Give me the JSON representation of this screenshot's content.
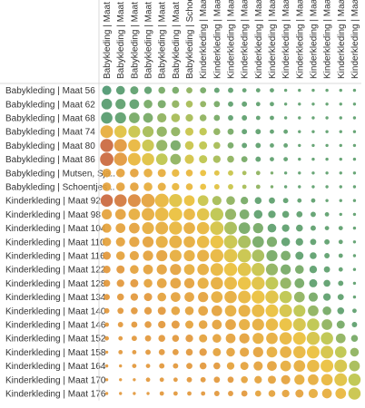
{
  "chart_data": {
    "type": "matrix-bubble",
    "rows": [
      "Babykleding | Maat 56",
      "Babykleding | Maat 62",
      "Babykleding | Maat 68",
      "Babykleding | Maat 74",
      "Babykleding | Maat 80",
      "Babykleding | Maat 86",
      "Babykleding | Mutsen, Sja..",
      "Babykleding | Schoentjes ..",
      "Kinderkleding | Maat 92",
      "Kinderkleding | Maat 98",
      "Kinderkleding | Maat 104",
      "Kinderkleding | Maat 110",
      "Kinderkleding | Maat 116",
      "Kinderkleding | Maat 122",
      "Kinderkleding | Maat 128",
      "Kinderkleding | Maat 134",
      "Kinderkleding | Maat 140",
      "Kinderkleding | Maat 146",
      "Kinderkleding | Maat 152",
      "Kinderkleding | Maat 158",
      "Kinderkleding | Maat 164",
      "Kinderkleding | Maat 170",
      "Kinderkleding | Maat 176"
    ],
    "columns": [
      "Babykleding | Maat 56",
      "Babykleding | Maat 62",
      "Babykleding | Maat 68",
      "Babykleding | Maat 74",
      "Babykleding | Maat 80",
      "Babykleding | Maat 86",
      "Babykleding | Schoentjes ...",
      "Kinderkleding | Maat 92",
      "Kinderkleding | Maat 98",
      "Kinderkleding | Maat 104",
      "Kinderkleding | Maat 110",
      "Kinderkleding | Maat 116",
      "Kinderkleding | Maat 122",
      "Kinderkleding | Maat 128",
      "Kinderkleding | Maat 134",
      "Kinderkleding | Maat 140",
      "Kinderkleding | Maat 146",
      "Kinderkleding | Maat 152",
      "Kinderkleding | Maat 158"
    ],
    "size_values": [
      [
        0.45,
        0.4,
        0.35,
        0.3,
        0.25,
        0.25,
        0.2,
        0.2,
        0.15,
        0.15,
        0.1,
        0.1,
        0.1,
        0.05,
        0.05,
        0.05,
        0.05,
        0.05,
        0.05
      ],
      [
        0.6,
        0.55,
        0.5,
        0.4,
        0.35,
        0.3,
        0.25,
        0.2,
        0.2,
        0.15,
        0.15,
        0.1,
        0.1,
        0.05,
        0.05,
        0.05,
        0.05,
        0.05,
        0.05
      ],
      [
        0.7,
        0.65,
        0.6,
        0.5,
        0.45,
        0.4,
        0.3,
        0.25,
        0.2,
        0.15,
        0.15,
        0.1,
        0.1,
        0.05,
        0.05,
        0.05,
        0.05,
        0.05,
        0.05
      ],
      [
        0.85,
        0.8,
        0.75,
        0.65,
        0.55,
        0.45,
        0.35,
        0.3,
        0.25,
        0.2,
        0.15,
        0.15,
        0.1,
        0.1,
        0.05,
        0.05,
        0.05,
        0.05,
        0.05
      ],
      [
        0.9,
        0.85,
        0.8,
        0.75,
        0.65,
        0.55,
        0.4,
        0.35,
        0.25,
        0.2,
        0.15,
        0.15,
        0.1,
        0.1,
        0.05,
        0.05,
        0.05,
        0.05,
        0.05
      ],
      [
        0.95,
        0.9,
        0.85,
        0.8,
        0.7,
        0.6,
        0.45,
        0.35,
        0.3,
        0.25,
        0.2,
        0.15,
        0.1,
        0.1,
        0.05,
        0.05,
        0.05,
        0.05,
        0.05
      ],
      [
        0.4,
        0.4,
        0.4,
        0.4,
        0.35,
        0.3,
        0.25,
        0.2,
        0.15,
        0.15,
        0.1,
        0.1,
        0.05,
        0.05,
        0.05,
        0.05,
        0.05,
        0.05,
        0.05
      ],
      [
        0.4,
        0.4,
        0.4,
        0.4,
        0.35,
        0.3,
        0.25,
        0.2,
        0.15,
        0.15,
        0.1,
        0.1,
        0.05,
        0.05,
        0.05,
        0.05,
        0.05,
        0.05,
        0.05
      ],
      [
        0.8,
        0.8,
        0.85,
        0.95,
        1.0,
        0.9,
        0.6,
        0.6,
        0.45,
        0.4,
        0.3,
        0.25,
        0.2,
        0.15,
        0.1,
        0.1,
        0.05,
        0.05,
        0.05
      ],
      [
        0.55,
        0.6,
        0.7,
        0.85,
        0.95,
        0.95,
        0.7,
        0.8,
        0.9,
        0.65,
        0.5,
        0.4,
        0.3,
        0.25,
        0.2,
        0.15,
        0.1,
        0.05,
        0.05
      ],
      [
        0.45,
        0.5,
        0.6,
        0.75,
        0.85,
        0.9,
        0.7,
        0.8,
        0.95,
        0.85,
        0.7,
        0.55,
        0.4,
        0.3,
        0.25,
        0.15,
        0.1,
        0.1,
        0.05
      ],
      [
        0.4,
        0.45,
        0.55,
        0.65,
        0.75,
        0.85,
        0.7,
        0.8,
        0.9,
        0.95,
        0.85,
        0.7,
        0.55,
        0.4,
        0.3,
        0.2,
        0.15,
        0.1,
        0.05
      ],
      [
        0.35,
        0.4,
        0.45,
        0.55,
        0.65,
        0.75,
        0.65,
        0.75,
        0.9,
        0.95,
        0.95,
        0.8,
        0.65,
        0.5,
        0.35,
        0.25,
        0.15,
        0.1,
        0.05
      ],
      [
        0.3,
        0.35,
        0.4,
        0.5,
        0.55,
        0.65,
        0.6,
        0.7,
        0.85,
        0.9,
        0.95,
        0.9,
        0.75,
        0.55,
        0.4,
        0.3,
        0.2,
        0.1,
        0.05
      ],
      [
        0.25,
        0.3,
        0.35,
        0.4,
        0.5,
        0.6,
        0.55,
        0.65,
        0.8,
        0.85,
        0.9,
        0.9,
        0.85,
        0.65,
        0.5,
        0.35,
        0.25,
        0.15,
        0.05
      ],
      [
        0.2,
        0.25,
        0.3,
        0.35,
        0.4,
        0.5,
        0.5,
        0.55,
        0.7,
        0.8,
        0.85,
        0.9,
        0.9,
        0.8,
        0.6,
        0.45,
        0.3,
        0.2,
        0.05
      ],
      [
        0.15,
        0.2,
        0.25,
        0.3,
        0.35,
        0.4,
        0.4,
        0.5,
        0.6,
        0.7,
        0.75,
        0.85,
        0.85,
        0.85,
        0.75,
        0.6,
        0.4,
        0.25,
        0.1
      ],
      [
        0.1,
        0.15,
        0.2,
        0.25,
        0.3,
        0.35,
        0.35,
        0.4,
        0.5,
        0.6,
        0.65,
        0.75,
        0.8,
        0.85,
        0.85,
        0.8,
        0.6,
        0.35,
        0.15
      ],
      [
        0.1,
        0.1,
        0.15,
        0.2,
        0.25,
        0.25,
        0.3,
        0.35,
        0.4,
        0.5,
        0.55,
        0.65,
        0.7,
        0.8,
        0.85,
        0.9,
        0.8,
        0.5,
        0.25
      ],
      [
        0.05,
        0.1,
        0.1,
        0.15,
        0.2,
        0.2,
        0.25,
        0.3,
        0.35,
        0.4,
        0.45,
        0.55,
        0.6,
        0.7,
        0.8,
        0.85,
        0.85,
        0.7,
        0.4
      ],
      [
        0.05,
        0.05,
        0.1,
        0.1,
        0.15,
        0.15,
        0.2,
        0.25,
        0.25,
        0.3,
        0.35,
        0.45,
        0.5,
        0.6,
        0.7,
        0.8,
        0.85,
        0.85,
        0.6
      ],
      [
        0.05,
        0.05,
        0.05,
        0.1,
        0.1,
        0.1,
        0.15,
        0.15,
        0.2,
        0.2,
        0.25,
        0.3,
        0.35,
        0.45,
        0.55,
        0.6,
        0.7,
        0.85,
        0.8
      ],
      [
        0.05,
        0.05,
        0.05,
        0.05,
        0.1,
        0.1,
        0.1,
        0.1,
        0.15,
        0.15,
        0.2,
        0.2,
        0.25,
        0.3,
        0.35,
        0.45,
        0.5,
        0.6,
        0.8
      ]
    ],
    "color_values": [
      [
        0.9,
        0.85,
        0.8,
        0.8,
        0.75,
        0.75,
        0.7,
        0.75,
        0.8,
        0.8,
        0.8,
        0.8,
        0.8,
        0.8,
        0.8,
        0.8,
        0.8,
        0.8,
        0.8
      ],
      [
        0.85,
        0.8,
        0.8,
        0.75,
        0.75,
        0.7,
        0.65,
        0.7,
        0.75,
        0.8,
        0.8,
        0.8,
        0.8,
        0.8,
        0.8,
        0.8,
        0.8,
        0.8,
        0.8
      ],
      [
        0.85,
        0.8,
        0.75,
        0.75,
        0.7,
        0.65,
        0.65,
        0.7,
        0.75,
        0.8,
        0.8,
        0.8,
        0.8,
        0.8,
        0.8,
        0.8,
        0.8,
        0.8,
        0.8
      ],
      [
        0.3,
        0.45,
        0.55,
        0.65,
        0.7,
        0.7,
        0.55,
        0.6,
        0.7,
        0.75,
        0.8,
        0.8,
        0.8,
        0.8,
        0.8,
        0.8,
        0.8,
        0.8,
        0.8
      ],
      [
        0.05,
        0.2,
        0.35,
        0.55,
        0.7,
        0.75,
        0.55,
        0.6,
        0.65,
        0.75,
        0.8,
        0.8,
        0.8,
        0.8,
        0.8,
        0.8,
        0.8,
        0.8,
        0.8
      ],
      [
        0.05,
        0.2,
        0.35,
        0.45,
        0.6,
        0.7,
        0.5,
        0.6,
        0.65,
        0.7,
        0.75,
        0.8,
        0.8,
        0.8,
        0.8,
        0.8,
        0.8,
        0.8,
        0.8
      ],
      [
        0.25,
        0.25,
        0.25,
        0.3,
        0.3,
        0.35,
        0.35,
        0.4,
        0.45,
        0.55,
        0.65,
        0.7,
        0.75,
        0.8,
        0.8,
        0.8,
        0.8,
        0.8,
        0.8
      ],
      [
        0.25,
        0.25,
        0.25,
        0.3,
        0.3,
        0.35,
        0.35,
        0.4,
        0.45,
        0.55,
        0.65,
        0.7,
        0.75,
        0.8,
        0.8,
        0.8,
        0.8,
        0.8,
        0.8
      ],
      [
        0.05,
        0.1,
        0.15,
        0.25,
        0.35,
        0.45,
        0.4,
        0.55,
        0.65,
        0.7,
        0.75,
        0.8,
        0.8,
        0.8,
        0.8,
        0.8,
        0.8,
        0.8,
        0.8
      ],
      [
        0.25,
        0.25,
        0.3,
        0.3,
        0.35,
        0.4,
        0.35,
        0.45,
        0.6,
        0.7,
        0.75,
        0.8,
        0.8,
        0.8,
        0.8,
        0.8,
        0.8,
        0.8,
        0.8
      ],
      [
        0.25,
        0.25,
        0.25,
        0.3,
        0.3,
        0.35,
        0.3,
        0.35,
        0.5,
        0.65,
        0.75,
        0.75,
        0.8,
        0.8,
        0.8,
        0.8,
        0.8,
        0.8,
        0.8
      ],
      [
        0.25,
        0.25,
        0.25,
        0.25,
        0.3,
        0.3,
        0.3,
        0.35,
        0.4,
        0.55,
        0.65,
        0.75,
        0.75,
        0.8,
        0.8,
        0.8,
        0.8,
        0.8,
        0.8
      ],
      [
        0.2,
        0.25,
        0.25,
        0.25,
        0.25,
        0.3,
        0.3,
        0.3,
        0.35,
        0.45,
        0.55,
        0.65,
        0.75,
        0.75,
        0.8,
        0.8,
        0.8,
        0.8,
        0.8
      ],
      [
        0.2,
        0.2,
        0.25,
        0.25,
        0.25,
        0.25,
        0.3,
        0.3,
        0.35,
        0.4,
        0.45,
        0.55,
        0.7,
        0.75,
        0.75,
        0.8,
        0.8,
        0.8,
        0.8
      ],
      [
        0.2,
        0.2,
        0.2,
        0.25,
        0.25,
        0.25,
        0.25,
        0.3,
        0.3,
        0.35,
        0.4,
        0.45,
        0.6,
        0.7,
        0.75,
        0.8,
        0.8,
        0.8,
        0.8
      ],
      [
        0.2,
        0.2,
        0.2,
        0.2,
        0.25,
        0.25,
        0.25,
        0.25,
        0.3,
        0.3,
        0.35,
        0.4,
        0.45,
        0.6,
        0.7,
        0.75,
        0.8,
        0.8,
        0.8
      ],
      [
        0.2,
        0.2,
        0.2,
        0.2,
        0.2,
        0.25,
        0.25,
        0.25,
        0.25,
        0.3,
        0.3,
        0.35,
        0.4,
        0.5,
        0.6,
        0.7,
        0.75,
        0.8,
        0.8
      ],
      [
        0.2,
        0.2,
        0.2,
        0.2,
        0.2,
        0.2,
        0.25,
        0.25,
        0.25,
        0.25,
        0.3,
        0.3,
        0.35,
        0.4,
        0.5,
        0.6,
        0.7,
        0.75,
        0.8
      ],
      [
        0.2,
        0.2,
        0.2,
        0.2,
        0.2,
        0.2,
        0.2,
        0.25,
        0.25,
        0.25,
        0.25,
        0.3,
        0.3,
        0.35,
        0.4,
        0.5,
        0.6,
        0.7,
        0.75
      ],
      [
        0.2,
        0.2,
        0.2,
        0.2,
        0.2,
        0.2,
        0.2,
        0.2,
        0.25,
        0.25,
        0.25,
        0.25,
        0.3,
        0.3,
        0.35,
        0.4,
        0.5,
        0.6,
        0.7
      ],
      [
        0.2,
        0.2,
        0.2,
        0.2,
        0.2,
        0.2,
        0.2,
        0.2,
        0.2,
        0.25,
        0.25,
        0.25,
        0.25,
        0.3,
        0.3,
        0.35,
        0.4,
        0.5,
        0.65
      ],
      [
        0.2,
        0.2,
        0.2,
        0.2,
        0.2,
        0.2,
        0.2,
        0.2,
        0.2,
        0.2,
        0.25,
        0.25,
        0.25,
        0.25,
        0.3,
        0.3,
        0.35,
        0.45,
        0.6
      ],
      [
        0.2,
        0.2,
        0.2,
        0.2,
        0.2,
        0.2,
        0.2,
        0.2,
        0.2,
        0.2,
        0.2,
        0.25,
        0.25,
        0.25,
        0.25,
        0.3,
        0.3,
        0.35,
        0.55
      ]
    ],
    "color_scale": [
      "#c2573e",
      "#e2973a",
      "#eabf3a",
      "#bdc44a",
      "#5c9e6b",
      "#3e8f74"
    ],
    "grid": false,
    "legend": "none"
  }
}
